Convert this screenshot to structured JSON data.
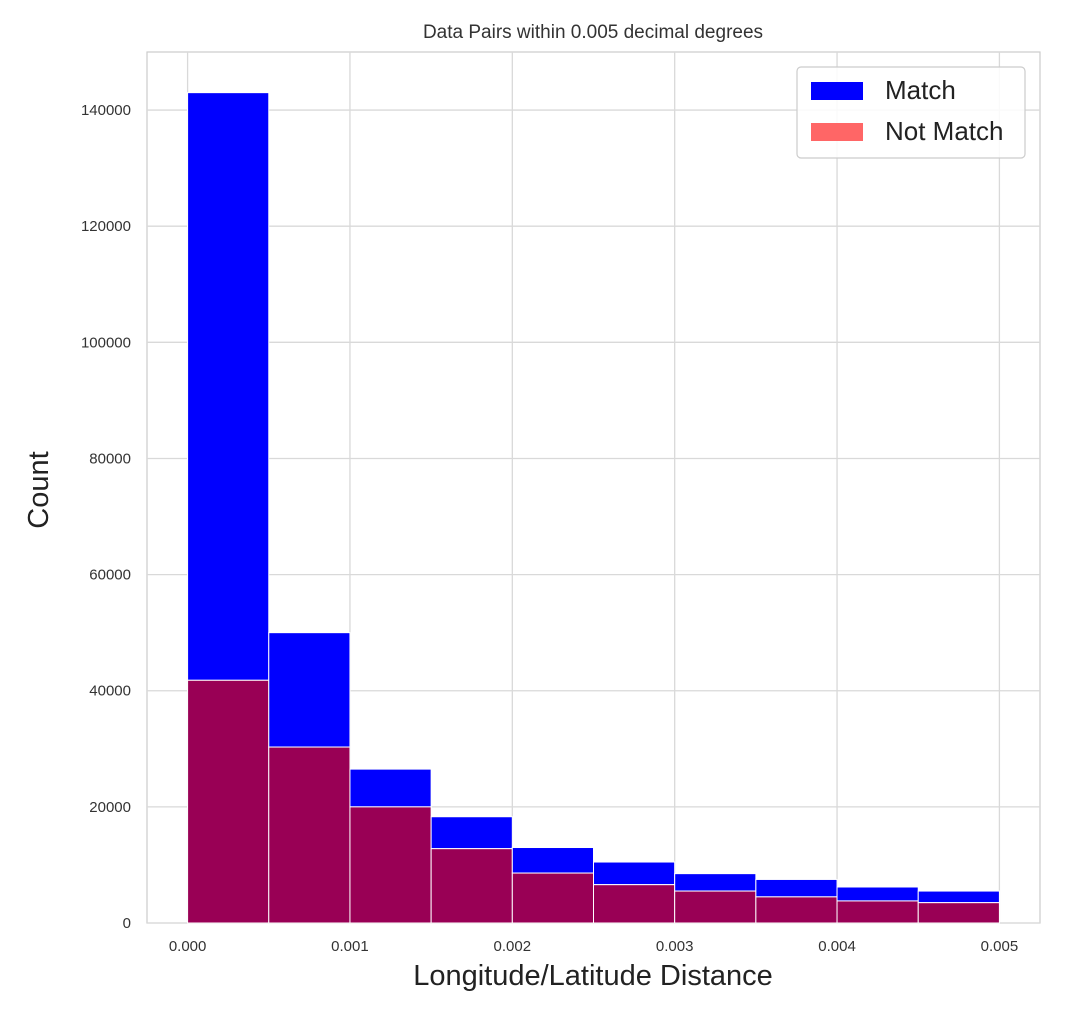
{
  "chart_data": {
    "type": "bar",
    "title": "Data Pairs within 0.005 decimal degrees",
    "xlabel": "Longitude/Latitude Distance",
    "ylabel": "Count",
    "xlim": [
      -0.00025,
      0.00525
    ],
    "ylim": [
      0,
      150000
    ],
    "x_ticks": [
      0.0,
      0.001,
      0.002,
      0.003,
      0.004,
      0.005
    ],
    "x_tick_labels": [
      "0.000",
      "0.001",
      "0.002",
      "0.003",
      "0.004",
      "0.005"
    ],
    "y_ticks": [
      0,
      20000,
      40000,
      60000,
      80000,
      100000,
      120000,
      140000
    ],
    "y_tick_labels": [
      "0",
      "20000",
      "40000",
      "60000",
      "80000",
      "100000",
      "120000",
      "140000"
    ],
    "bin_edges": [
      0.0,
      0.0005,
      0.001,
      0.0015,
      0.002,
      0.0025,
      0.003,
      0.0035,
      0.004,
      0.0045,
      0.005
    ],
    "grid": true,
    "legend_position": "top-right",
    "series": [
      {
        "name": "Match",
        "color": "#0000ff",
        "values": [
          143000,
          50000,
          26500,
          18300,
          13000,
          10500,
          8500,
          7500,
          6200,
          5500
        ]
      },
      {
        "name": "Not Match",
        "color": "#ff6666",
        "overlap_color": "#990055",
        "values": [
          41800,
          30300,
          20000,
          12800,
          8600,
          6600,
          5500,
          4500,
          3800,
          3500
        ]
      }
    ]
  }
}
